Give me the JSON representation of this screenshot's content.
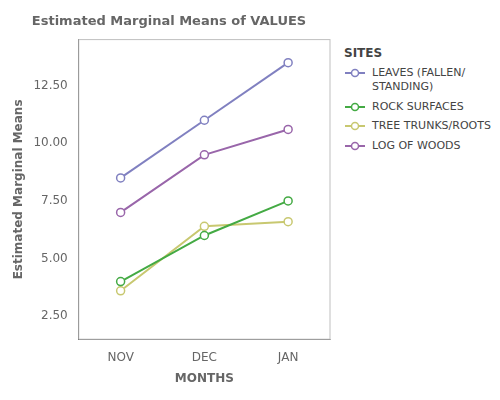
{
  "chart_data": {
    "type": "line",
    "title": "Estimated Marginal Means of VALUES",
    "xlabel": "MONTHS",
    "ylabel": "Estimated Marginal Means",
    "legend_title": "SITES",
    "categories": [
      "NOV",
      "DEC",
      "JAN"
    ],
    "series": [
      {
        "name": "LEAVES (FALLEN/\nSTANDING)",
        "color": "#8080c0",
        "marker": "o",
        "values": [
          8.5,
          11.0,
          13.5
        ]
      },
      {
        "name": "ROCK SURFACES",
        "color": "#44aa44",
        "marker": "o",
        "values": [
          4.0,
          6.0,
          7.5
        ]
      },
      {
        "name": "TREE TRUNKS/ROOTS",
        "color": "#c8c870",
        "marker": "o",
        "values": [
          3.6,
          6.4,
          6.6
        ]
      },
      {
        "name": "LOG OF WOODS",
        "color": "#9966aa",
        "marker": "o",
        "values": [
          7.0,
          9.5,
          10.6
        ]
      }
    ],
    "ylim": [
      1.5,
      14.5
    ],
    "yticks": [
      {
        "value": 2.5,
        "label": "2.50"
      },
      {
        "value": 5.0,
        "label": "5.00"
      },
      {
        "value": 7.5,
        "label": "7.50"
      },
      {
        "value": 10.0,
        "label": "10.00"
      },
      {
        "value": 12.5,
        "label": "12.50"
      }
    ],
    "grid": false,
    "legend": "right"
  }
}
